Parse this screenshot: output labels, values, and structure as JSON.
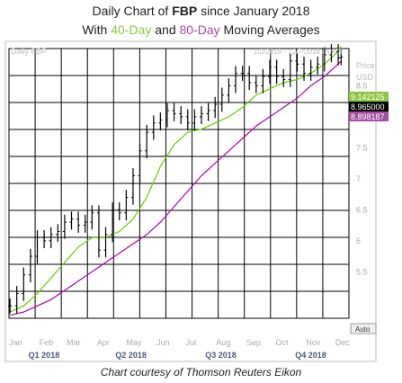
{
  "title": {
    "line1_prefix": "Daily Chart of ",
    "ticker": "FBP",
    "line1_suffix": " since January 2018",
    "line2_prefix": "With ",
    "ma40_label": "40-Day",
    "line2_mid": " and ",
    "ma80_label": "80-Day",
    "line2_suffix": " Moving Averages"
  },
  "header": {
    "series_label": "Daily FBP",
    "date_range": "1/2/2018 - 12/7/2018 (NYC)",
    "price_label": "Price",
    "currency_label": "USD"
  },
  "auto_label": "Auto",
  "credit": "Chart courtesy of Thomson Reuters Eikon",
  "colors": {
    "price": "#000000",
    "ma40": "#66cc00",
    "ma80": "#b000b0",
    "grid": "#000000",
    "ma40_tag": "#8ec63f",
    "price_tag": "#000000",
    "ma80_tag": "#a64ca6"
  },
  "chart_data": {
    "type": "line",
    "subtype": "ohlc-bar",
    "ylim": [
      4.75,
      9.1
    ],
    "y_ticks": [
      "5.5",
      "6",
      "6.5",
      "7",
      "7.5",
      "8",
      "8.5"
    ],
    "month_labels": [
      "Jan",
      "Feb",
      "Mar",
      "Apr",
      "May",
      "Jun",
      "Jul",
      "Aug",
      "Sep",
      "Oct",
      "Nov",
      "Dec"
    ],
    "quarter_labels": [
      "Q1 2018",
      "Q2 2018",
      "Q3 2018",
      "Q4 2018"
    ],
    "last_values": {
      "ma40": "9.142125",
      "price": "8.965000",
      "ma80": "8.898187"
    },
    "series": [
      {
        "name": "FBP",
        "style": "ohlc",
        "x": [
          "2018-01-02",
          "2018-01-09",
          "2018-01-16",
          "2018-01-23",
          "2018-01-30",
          "2018-02-06",
          "2018-02-13",
          "2018-02-20",
          "2018-02-27",
          "2018-03-06",
          "2018-03-13",
          "2018-03-20",
          "2018-03-27",
          "2018-04-03",
          "2018-04-10",
          "2018-04-17",
          "2018-04-24",
          "2018-05-01",
          "2018-05-08",
          "2018-05-15",
          "2018-05-22",
          "2018-05-29",
          "2018-06-05",
          "2018-06-12",
          "2018-06-19",
          "2018-06-26",
          "2018-07-03",
          "2018-07-10",
          "2018-07-17",
          "2018-07-24",
          "2018-07-31",
          "2018-08-07",
          "2018-08-14",
          "2018-08-21",
          "2018-08-28",
          "2018-09-04",
          "2018-09-11",
          "2018-09-18",
          "2018-09-25",
          "2018-10-02",
          "2018-10-09",
          "2018-10-16",
          "2018-10-23",
          "2018-10-30",
          "2018-11-06",
          "2018-11-13",
          "2018-11-20",
          "2018-11-27",
          "2018-12-04",
          "2018-12-07"
        ],
        "values": [
          4.95,
          5.15,
          5.45,
          5.75,
          6.05,
          6.0,
          6.1,
          6.15,
          6.3,
          6.35,
          6.25,
          6.3,
          6.45,
          5.85,
          6.1,
          6.5,
          6.45,
          6.7,
          7.05,
          7.45,
          7.75,
          7.9,
          7.95,
          8.1,
          8.05,
          8.0,
          7.9,
          8.0,
          8.05,
          8.1,
          8.2,
          8.35,
          8.5,
          8.7,
          8.7,
          8.55,
          8.5,
          8.65,
          8.8,
          8.65,
          8.6,
          8.9,
          8.85,
          8.7,
          8.8,
          8.85,
          9.0,
          9.05,
          8.95,
          8.965
        ]
      },
      {
        "name": "40-Day",
        "style": "line",
        "x": [
          "2018-01-02",
          "2018-01-16",
          "2018-01-30",
          "2018-02-13",
          "2018-02-27",
          "2018-03-13",
          "2018-03-27",
          "2018-04-10",
          "2018-04-24",
          "2018-05-08",
          "2018-05-22",
          "2018-06-05",
          "2018-06-19",
          "2018-07-03",
          "2018-07-17",
          "2018-07-31",
          "2018-08-14",
          "2018-08-28",
          "2018-09-11",
          "2018-09-25",
          "2018-10-09",
          "2018-10-23",
          "2018-11-06",
          "2018-11-20",
          "2018-12-04",
          "2018-12-07"
        ],
        "values": [
          4.85,
          4.95,
          5.15,
          5.4,
          5.65,
          5.9,
          6.05,
          6.05,
          6.15,
          6.35,
          6.7,
          7.2,
          7.55,
          7.75,
          7.8,
          7.9,
          8.0,
          8.15,
          8.35,
          8.45,
          8.55,
          8.6,
          8.7,
          8.85,
          9.05,
          9.142125
        ]
      },
      {
        "name": "80-Day",
        "style": "line",
        "x": [
          "2018-01-02",
          "2018-01-16",
          "2018-01-30",
          "2018-02-13",
          "2018-02-27",
          "2018-03-13",
          "2018-03-27",
          "2018-04-10",
          "2018-04-24",
          "2018-05-08",
          "2018-05-22",
          "2018-06-05",
          "2018-06-19",
          "2018-07-03",
          "2018-07-17",
          "2018-07-31",
          "2018-08-14",
          "2018-08-28",
          "2018-09-11",
          "2018-09-25",
          "2018-10-09",
          "2018-10-23",
          "2018-11-06",
          "2018-11-20",
          "2018-12-04",
          "2018-12-07"
        ],
        "values": [
          4.8,
          4.85,
          4.95,
          5.05,
          5.2,
          5.35,
          5.5,
          5.65,
          5.8,
          5.95,
          6.1,
          6.3,
          6.55,
          6.8,
          7.05,
          7.25,
          7.45,
          7.65,
          7.85,
          8.0,
          8.15,
          8.3,
          8.5,
          8.65,
          8.85,
          8.898187
        ]
      }
    ]
  }
}
